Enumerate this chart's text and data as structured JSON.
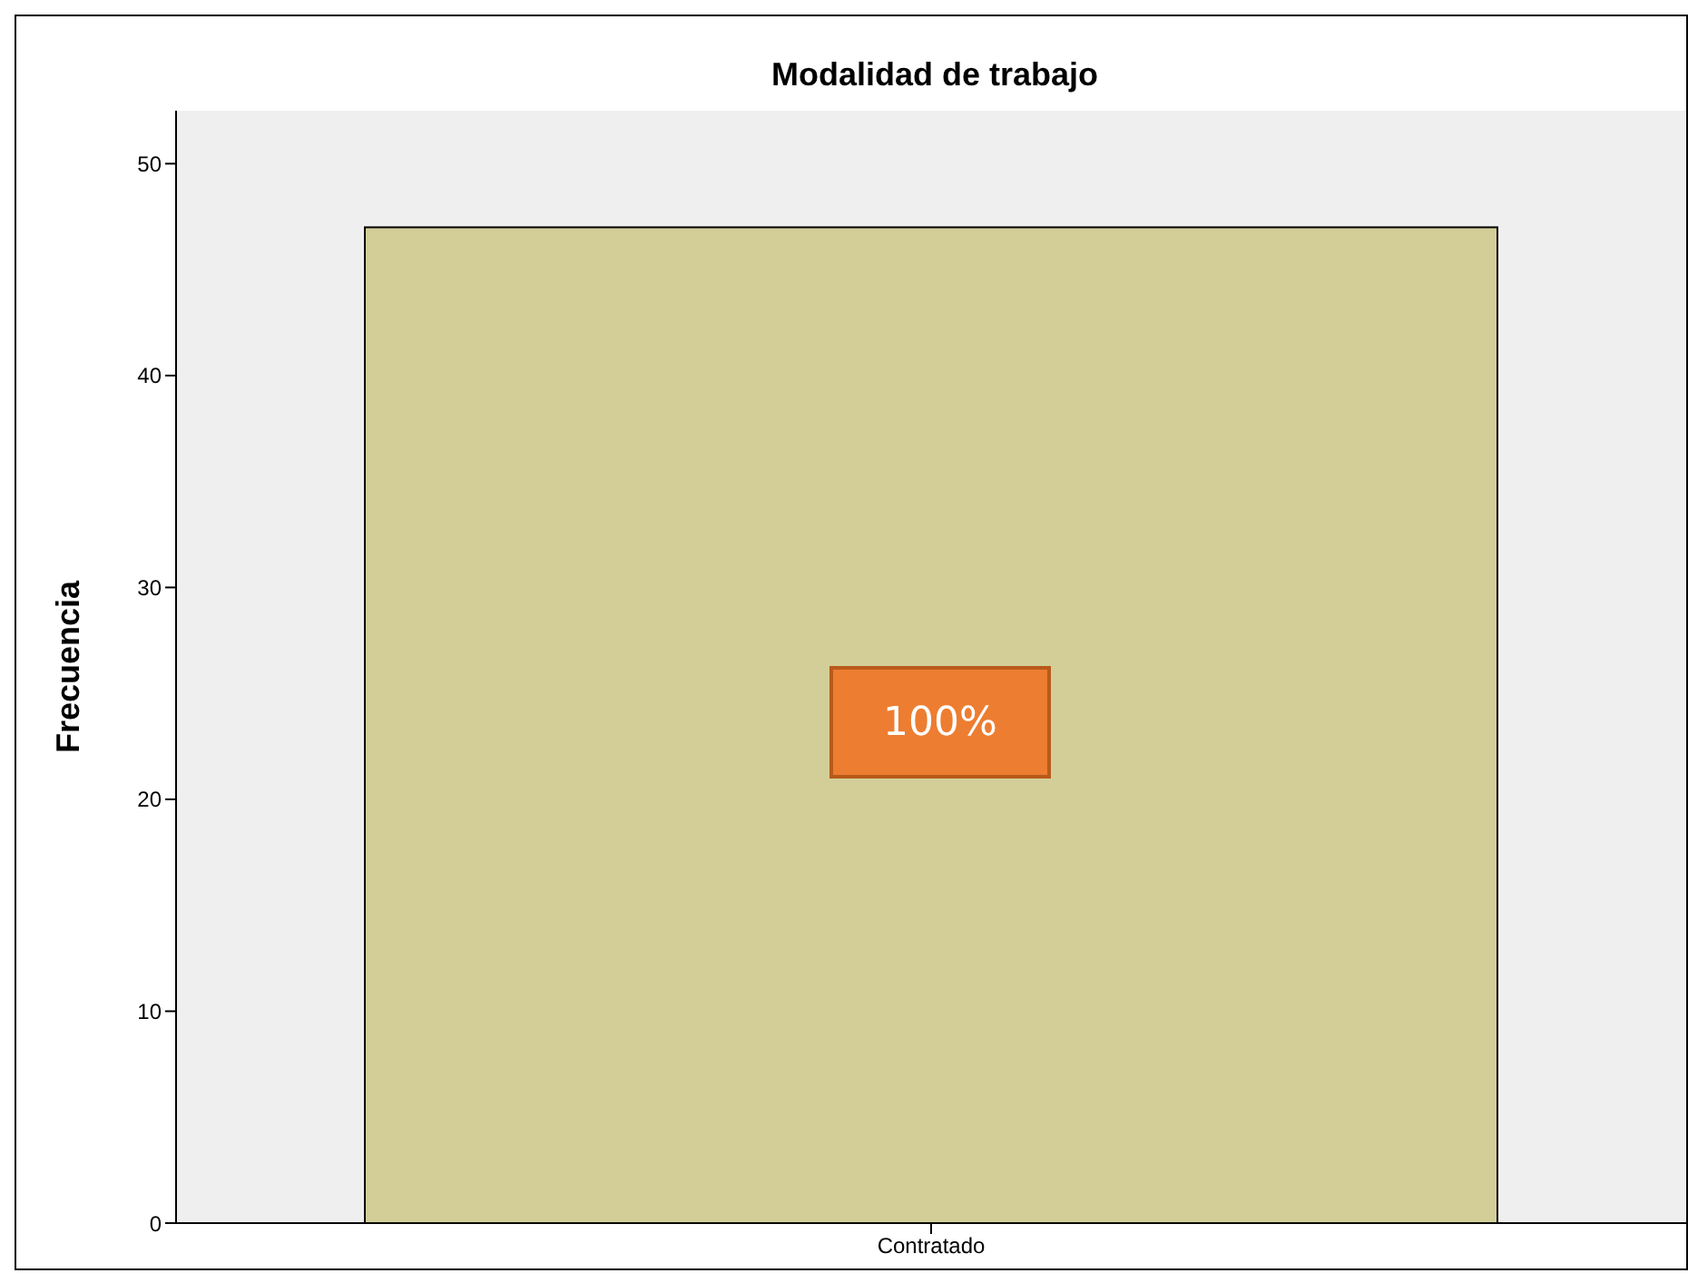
{
  "chart_data": {
    "type": "bar",
    "title": "Modalidad de trabajo",
    "ylabel": "Frecuencia",
    "categories": [
      "Contratado"
    ],
    "values": [
      47
    ],
    "color": "#d3ce98",
    "ylim": [
      0,
      52.5
    ],
    "yticks": [
      0,
      10,
      20,
      30,
      40,
      50
    ],
    "grid": false,
    "annotations": [
      "100%"
    ]
  }
}
